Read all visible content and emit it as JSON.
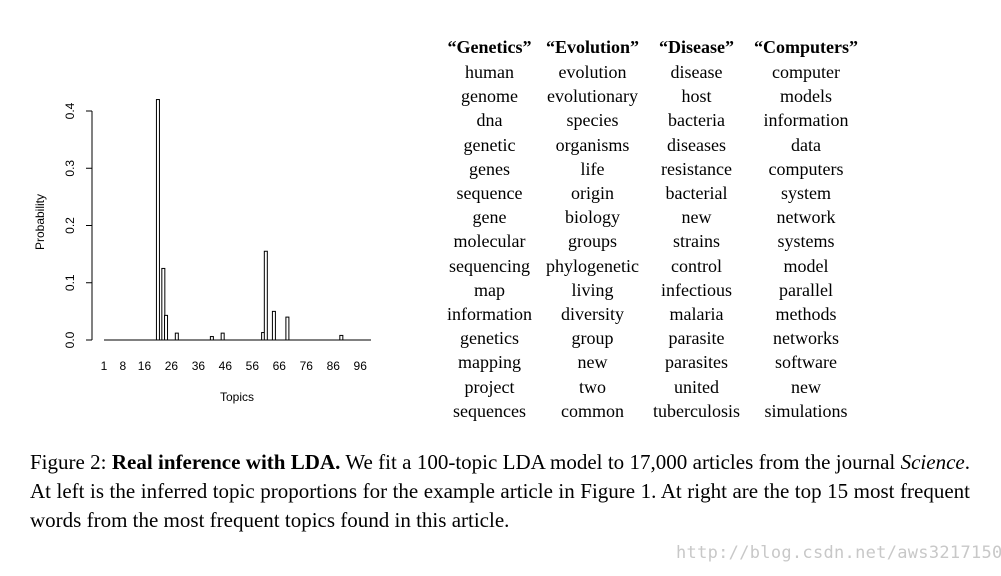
{
  "chart_data": {
    "type": "bar",
    "xlabel": "Topics",
    "ylabel": "Probability",
    "ylim": [
      0,
      0.4
    ],
    "yticks": [
      "0.0",
      "0.1",
      "0.2",
      "0.3",
      "0.4"
    ],
    "xticks": [
      "1",
      "8",
      "16",
      "26",
      "36",
      "46",
      "56",
      "66",
      "76",
      "86",
      "96"
    ],
    "x_range": [
      1,
      100
    ],
    "x": [
      21,
      23,
      24,
      28,
      41,
      45,
      60,
      61,
      64,
      69,
      89
    ],
    "values": [
      0.42,
      0.125,
      0.043,
      0.012,
      0.006,
      0.012,
      0.013,
      0.155,
      0.05,
      0.04,
      0.008
    ]
  },
  "topics": {
    "headers": [
      "“Genetics”",
      "“Evolution”",
      "“Disease”",
      "“Computers”"
    ],
    "words": [
      [
        "human",
        "genome",
        "dna",
        "genetic",
        "genes",
        "sequence",
        "gene",
        "molecular",
        "sequencing",
        "map",
        "information",
        "genetics",
        "mapping",
        "project",
        "sequences"
      ],
      [
        "evolution",
        "evolutionary",
        "species",
        "organisms",
        "life",
        "origin",
        "biology",
        "groups",
        "phylogenetic",
        "living",
        "diversity",
        "group",
        "new",
        "two",
        "common"
      ],
      [
        "disease",
        "host",
        "bacteria",
        "diseases",
        "resistance",
        "bacterial",
        "new",
        "strains",
        "control",
        "infectious",
        "malaria",
        "parasite",
        "parasites",
        "united",
        "tuberculosis"
      ],
      [
        "computer",
        "models",
        "information",
        "data",
        "computers",
        "system",
        "network",
        "systems",
        "model",
        "parallel",
        "methods",
        "networks",
        "software",
        "new",
        "simulations"
      ]
    ]
  },
  "caption": {
    "prefix": "Figure 2: ",
    "bold": "Real inference with LDA.",
    "part1": " We fit a 100-topic LDA model to 17,000 articles from the journal ",
    "journal": "Science",
    "part2": ". At left is the inferred topic proportions for the example article in Figure 1. At right are the top 15 most frequent words from the most frequent topics found in this article."
  },
  "watermark": "http://blog.csdn.net/aws3217150"
}
